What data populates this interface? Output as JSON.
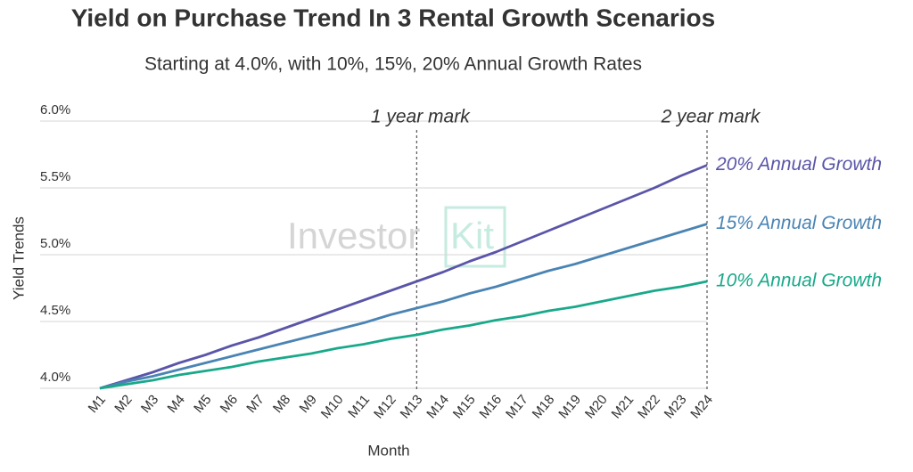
{
  "chart_data": {
    "type": "line",
    "title": "Yield on Purchase Trend In 3 Rental Growth Scenarios",
    "subtitle": "Starting at 4.0%, with 10%, 15%, 20% Annual Growth Rates",
    "x_label": "Month",
    "y_label": "Yield Trends",
    "watermark": [
      "Investor",
      "Kit"
    ],
    "categories": [
      "M1",
      "M2",
      "M3",
      "M4",
      "M5",
      "M6",
      "M7",
      "M8",
      "M9",
      "M10",
      "M11",
      "M12",
      "M13",
      "M14",
      "M15",
      "M16",
      "M17",
      "M18",
      "M19",
      "M20",
      "M21",
      "M22",
      "M23",
      "M24"
    ],
    "series": [
      {
        "name": "20% Annual Growth",
        "color": "#5a55a8",
        "values": [
          4.0,
          4.06,
          4.12,
          4.19,
          4.25,
          4.32,
          4.38,
          4.45,
          4.52,
          4.59,
          4.66,
          4.73,
          4.8,
          4.87,
          4.95,
          5.02,
          5.1,
          5.18,
          5.26,
          5.34,
          5.42,
          5.5,
          5.59,
          5.67
        ]
      },
      {
        "name": "15% Annual Growth",
        "color": "#4a84b4",
        "values": [
          4.0,
          4.05,
          4.09,
          4.14,
          4.19,
          4.24,
          4.29,
          4.34,
          4.39,
          4.44,
          4.49,
          4.55,
          4.6,
          4.65,
          4.71,
          4.76,
          4.82,
          4.88,
          4.93,
          4.99,
          5.05,
          5.11,
          5.17,
          5.23
        ]
      },
      {
        "name": "10% Annual Growth",
        "color": "#19a98a",
        "values": [
          4.0,
          4.03,
          4.06,
          4.1,
          4.13,
          4.16,
          4.2,
          4.23,
          4.26,
          4.3,
          4.33,
          4.37,
          4.4,
          4.44,
          4.47,
          4.51,
          4.54,
          4.58,
          4.61,
          4.65,
          4.69,
          4.73,
          4.76,
          4.8
        ]
      }
    ],
    "annotations": [
      {
        "text": "1 year mark",
        "x": "M13"
      },
      {
        "text": "2 year mark",
        "x": "M24"
      }
    ],
    "ylim": [
      4.0,
      6.0
    ],
    "yticks": [
      {
        "value": 4.0,
        "label": "4.0%"
      },
      {
        "value": 4.5,
        "label": "4.5%"
      },
      {
        "value": 5.0,
        "label": "5.0%"
      },
      {
        "value": 5.5,
        "label": "5.5%"
      },
      {
        "value": 6.0,
        "label": "6.0%"
      }
    ],
    "grid": true
  }
}
